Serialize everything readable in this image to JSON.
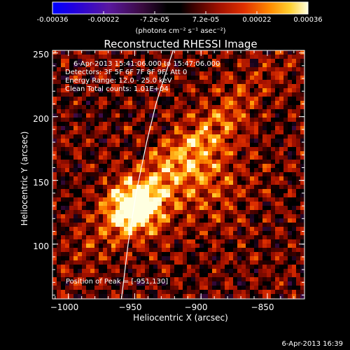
{
  "colorbar": {
    "ticks": [
      "-0.00036",
      "-0.00022",
      "-7.2e-05",
      "7.2e-05",
      "0.00022",
      "0.00036"
    ],
    "unit_label": "(photons cm⁻² s⁻¹ asec⁻²)",
    "range": [
      -0.00036,
      0.00036
    ]
  },
  "chart_data": {
    "type": "heatmap",
    "title": "Reconstructed RHESSI Image",
    "xlabel": "Heliocentric X (arcsec)",
    "ylabel": "Heliocentric Y (arcsec)",
    "xlim": [
      -1012,
      -822
    ],
    "ylim": [
      57,
      252
    ],
    "x_ticks": [
      -1000,
      -950,
      -900,
      -850
    ],
    "y_ticks": [
      100,
      150,
      200,
      250
    ],
    "x_tick_labels": [
      "−1000",
      "−950",
      "−900",
      "−850"
    ],
    "y_tick_labels": [
      "100",
      "150",
      "200",
      "250"
    ],
    "peak": {
      "x": -951,
      "y": 130
    },
    "limb_curve": {
      "x": [
        -960,
        -955,
        -949,
        -941,
        -934,
        -928,
        -921
      ],
      "y": [
        57,
        100,
        140,
        180,
        210,
        230,
        252
      ]
    },
    "annotations": {
      "time_range": "6-Apr-2013 15:41:06.000 to 15:47:06.000",
      "detectors": "Detectors: 3F 5F 6F 7F 8F 9F, Att 0",
      "energy": "Energy Range: 12.0 - 25.0 keV",
      "clean": "Clean    Total counts: 1.01E+04",
      "peak_text": "Position of Peak = [-951,130]"
    }
  },
  "footer": {
    "timestamp": "6-Apr-2013 16:39"
  }
}
